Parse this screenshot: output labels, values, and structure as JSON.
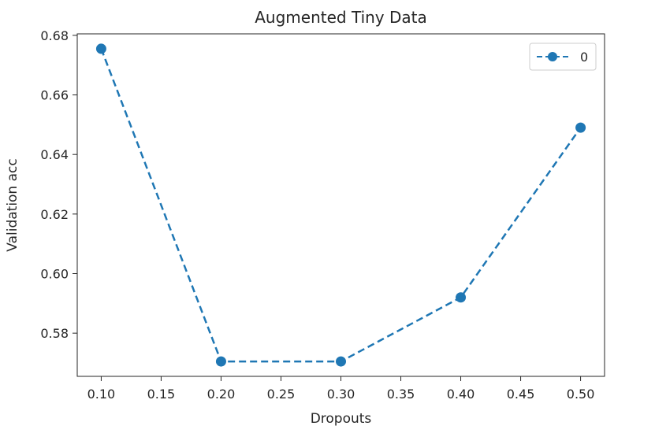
{
  "chart_data": {
    "type": "line",
    "title": "Augmented Tiny Data",
    "xlabel": "Dropouts",
    "ylabel": "Validation acc",
    "x": [
      0.1,
      0.2,
      0.3,
      0.4,
      0.5
    ],
    "series": [
      {
        "name": "0",
        "values": [
          0.6755,
          0.5705,
          0.5705,
          0.592,
          0.649
        ],
        "color": "#1f77b4",
        "line_style": "dashed",
        "marker": "circle"
      }
    ],
    "xlim": [
      0.08,
      0.52
    ],
    "ylim": [
      0.5655,
      0.6805
    ],
    "xticks": [
      0.1,
      0.15,
      0.2,
      0.25,
      0.3,
      0.35,
      0.4,
      0.45,
      0.5
    ],
    "xtick_labels": [
      "0.10",
      "0.15",
      "0.20",
      "0.25",
      "0.30",
      "0.35",
      "0.40",
      "0.45",
      "0.50"
    ],
    "yticks": [
      0.58,
      0.6,
      0.62,
      0.64,
      0.66,
      0.68
    ],
    "ytick_labels": [
      "0.58",
      "0.60",
      "0.62",
      "0.64",
      "0.66",
      "0.68"
    ],
    "grid": false,
    "legend": {
      "position": "top-right",
      "entries": [
        "0"
      ]
    }
  }
}
